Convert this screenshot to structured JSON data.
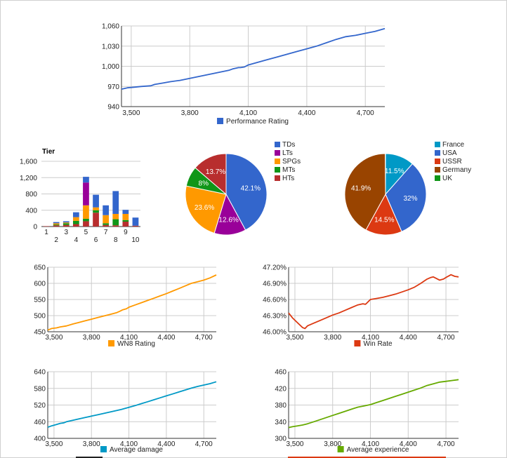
{
  "chart_data": [
    {
      "id": "performance",
      "type": "line",
      "title": "",
      "xlabel": "",
      "ylabel": "",
      "x_ticks": [
        "3,500",
        "3,800",
        "4,100",
        "4,400",
        "4,700"
      ],
      "y_ticks": [
        "940",
        "970",
        "1,000",
        "1,030",
        "1,060"
      ],
      "xlim": [
        3450,
        4800
      ],
      "ylim": [
        940,
        1060
      ],
      "grid": true,
      "legend_position": "bottom",
      "series": [
        {
          "name": "Performance Rating",
          "color": "#3366cc",
          "x": [
            3450,
            3480,
            3520,
            3550,
            3600,
            3620,
            3660,
            3700,
            3750,
            3800,
            3850,
            3900,
            3950,
            4000,
            4020,
            4050,
            4060,
            4080,
            4100,
            4150,
            4200,
            4250,
            4300,
            4350,
            4400,
            4450,
            4500,
            4550,
            4600,
            4650,
            4700,
            4750,
            4800
          ],
          "y": [
            966,
            968,
            969,
            970,
            971,
            973,
            975,
            977,
            979,
            982,
            985,
            988,
            991,
            994,
            996,
            998,
            998,
            999,
            1002,
            1006,
            1010,
            1014,
            1018,
            1022,
            1026,
            1030,
            1035,
            1040,
            1044,
            1046,
            1049,
            1052,
            1056
          ]
        }
      ]
    },
    {
      "id": "tier",
      "type": "bar",
      "stacked": true,
      "title": "Tier",
      "xlabel": "",
      "ylabel": "",
      "x_ticks_top": [
        "1",
        "3",
        "5",
        "7",
        "9"
      ],
      "x_ticks_bottom": [
        "2",
        "4",
        "6",
        "8",
        "10"
      ],
      "y_ticks": [
        "0",
        "400",
        "800",
        "1,200",
        "1,600"
      ],
      "ylim": [
        0,
        1600
      ],
      "grid": true,
      "categories": [
        "1",
        "2",
        "3",
        "4",
        "5",
        "6",
        "7",
        "8",
        "9",
        "10"
      ],
      "series": [
        {
          "name": "HTs",
          "color": "#b82e2e",
          "values": [
            10,
            30,
            40,
            60,
            130,
            340,
            40,
            30,
            120,
            20
          ]
        },
        {
          "name": "MTs",
          "color": "#109618",
          "values": [
            0,
            20,
            40,
            80,
            60,
            60,
            40,
            150,
            40,
            0
          ]
        },
        {
          "name": "SPGs",
          "color": "#ff9900",
          "values": [
            0,
            30,
            20,
            90,
            330,
            70,
            200,
            130,
            150,
            0
          ]
        },
        {
          "name": "LTs",
          "color": "#990099",
          "values": [
            0,
            0,
            0,
            0,
            560,
            0,
            0,
            0,
            0,
            0
          ]
        },
        {
          "name": "TDs",
          "color": "#3366cc",
          "values": [
            0,
            30,
            30,
            120,
            140,
            310,
            240,
            560,
            100,
            200
          ]
        }
      ]
    },
    {
      "id": "class_pie",
      "type": "pie",
      "legend_position": "right",
      "slices": [
        {
          "name": "TDs",
          "value": 42.1,
          "label": "42.1%",
          "color": "#3366cc"
        },
        {
          "name": "LTs",
          "value": 12.6,
          "label": "12.6%",
          "color": "#990099"
        },
        {
          "name": "SPGs",
          "value": 23.6,
          "label": "23.6%",
          "color": "#ff9900"
        },
        {
          "name": "MTs",
          "value": 8.0,
          "label": "8%",
          "color": "#109618"
        },
        {
          "name": "HTs",
          "value": 13.7,
          "label": "13.7%",
          "color": "#b82e2e"
        }
      ]
    },
    {
      "id": "nation_pie",
      "type": "pie",
      "legend_position": "right",
      "legend": [
        {
          "name": "France",
          "color": "#0099c6"
        },
        {
          "name": "USA",
          "color": "#3366cc"
        },
        {
          "name": "USSR",
          "color": "#dc3912"
        },
        {
          "name": "Germany",
          "color": "#994400"
        },
        {
          "name": "UK",
          "color": "#109618"
        }
      ],
      "slices": [
        {
          "name": "France",
          "value": 11.5,
          "label": "11.5%",
          "color": "#0099c6"
        },
        {
          "name": "USA",
          "value": 32.0,
          "label": "32%",
          "color": "#3366cc"
        },
        {
          "name": "USSR",
          "value": 14.5,
          "label": "14.5%",
          "color": "#dc3912"
        },
        {
          "name": "Germany",
          "value": 41.9,
          "label": "41.9%",
          "color": "#994400"
        },
        {
          "name": "UK",
          "value": 0.1,
          "label": "",
          "color": "#109618"
        }
      ]
    },
    {
      "id": "wn8",
      "type": "line",
      "x_ticks": [
        "3,500",
        "3,800",
        "4,100",
        "4,400",
        "4,700"
      ],
      "y_ticks": [
        "450",
        "500",
        "550",
        "600",
        "650"
      ],
      "xlim": [
        3450,
        4800
      ],
      "ylim": [
        450,
        650
      ],
      "grid": true,
      "legend_position": "bottom",
      "series": [
        {
          "name": "WN8 Rating",
          "color": "#ff9900",
          "x": [
            3450,
            3480,
            3520,
            3550,
            3600,
            3650,
            3700,
            3750,
            3800,
            3850,
            3900,
            3950,
            4000,
            4030,
            4050,
            4080,
            4100,
            4150,
            4200,
            4250,
            4300,
            4350,
            4400,
            4450,
            4500,
            4550,
            4600,
            4650,
            4700,
            4750,
            4800
          ],
          "y": [
            455,
            460,
            462,
            465,
            468,
            474,
            479,
            484,
            489,
            494,
            499,
            504,
            509,
            514,
            518,
            521,
            526,
            533,
            540,
            547,
            554,
            561,
            568,
            576,
            584,
            592,
            600,
            605,
            610,
            617,
            626
          ]
        }
      ]
    },
    {
      "id": "winrate",
      "type": "line",
      "x_ticks": [
        "3,500",
        "3,800",
        "4,100",
        "4,400",
        "4,700"
      ],
      "y_ticks": [
        "46.00%",
        "46.30%",
        "46.60%",
        "46.90%",
        "47.20%"
      ],
      "xlim": [
        3450,
        4800
      ],
      "ylim": [
        46.0,
        47.2
      ],
      "grid": true,
      "legend_position": "bottom",
      "series": [
        {
          "name": "Win Rate",
          "color": "#dc3912",
          "x": [
            3450,
            3480,
            3520,
            3560,
            3580,
            3600,
            3650,
            3700,
            3750,
            3800,
            3850,
            3900,
            3950,
            4000,
            4040,
            4060,
            4070,
            4100,
            4150,
            4200,
            4250,
            4300,
            4350,
            4400,
            4450,
            4500,
            4550,
            4580,
            4600,
            4650,
            4680,
            4700,
            4740,
            4770,
            4800
          ],
          "y": [
            46.35,
            46.26,
            46.17,
            46.08,
            46.06,
            46.11,
            46.16,
            46.21,
            46.26,
            46.31,
            46.35,
            46.4,
            46.45,
            46.5,
            46.52,
            46.51,
            46.53,
            46.6,
            46.62,
            46.64,
            46.67,
            46.7,
            46.74,
            46.78,
            46.83,
            46.9,
            46.98,
            47.01,
            47.02,
            46.96,
            46.98,
            47.01,
            47.06,
            47.03,
            47.02
          ]
        }
      ]
    },
    {
      "id": "avgdamage",
      "type": "line",
      "x_ticks": [
        "3,500",
        "3,800",
        "4,100",
        "4,400",
        "4,700"
      ],
      "y_ticks": [
        "400",
        "460",
        "520",
        "580",
        "640"
      ],
      "xlim": [
        3450,
        4800
      ],
      "ylim": [
        400,
        640
      ],
      "grid": true,
      "legend_position": "bottom",
      "series": [
        {
          "name": "Average damage",
          "color": "#0099c6",
          "x": [
            3450,
            3480,
            3520,
            3550,
            3580,
            3600,
            3650,
            3700,
            3750,
            3800,
            3850,
            3900,
            3950,
            4000,
            4040,
            4070,
            4100,
            4150,
            4200,
            4250,
            4300,
            4350,
            4400,
            4450,
            4500,
            4550,
            4600,
            4650,
            4700,
            4750,
            4800
          ],
          "y": [
            440,
            445,
            450,
            454,
            456,
            460,
            465,
            470,
            475,
            480,
            485,
            490,
            495,
            500,
            504,
            508,
            512,
            518,
            525,
            532,
            539,
            546,
            553,
            560,
            567,
            574,
            581,
            587,
            592,
            597,
            604
          ]
        }
      ]
    },
    {
      "id": "avgexp",
      "type": "line",
      "x_ticks": [
        "3,500",
        "3,800",
        "4,100",
        "4,400",
        "4,700"
      ],
      "y_ticks": [
        "300",
        "340",
        "380",
        "420",
        "460"
      ],
      "xlim": [
        3450,
        4800
      ],
      "ylim": [
        300,
        460
      ],
      "grid": true,
      "legend_position": "bottom",
      "series": [
        {
          "name": "Average experience",
          "color": "#66aa00",
          "x": [
            3450,
            3480,
            3520,
            3560,
            3600,
            3650,
            3700,
            3750,
            3800,
            3850,
            3900,
            3950,
            4000,
            4050,
            4100,
            4150,
            4200,
            4250,
            4300,
            4350,
            4400,
            4450,
            4500,
            4550,
            4600,
            4650,
            4700,
            4750,
            4800
          ],
          "y": [
            326,
            328,
            330,
            332,
            335,
            340,
            345,
            350,
            355,
            360,
            365,
            370,
            375,
            378,
            381,
            386,
            391,
            396,
            401,
            406,
            411,
            416,
            421,
            427,
            431,
            435,
            437,
            439,
            441
          ]
        }
      ]
    }
  ]
}
